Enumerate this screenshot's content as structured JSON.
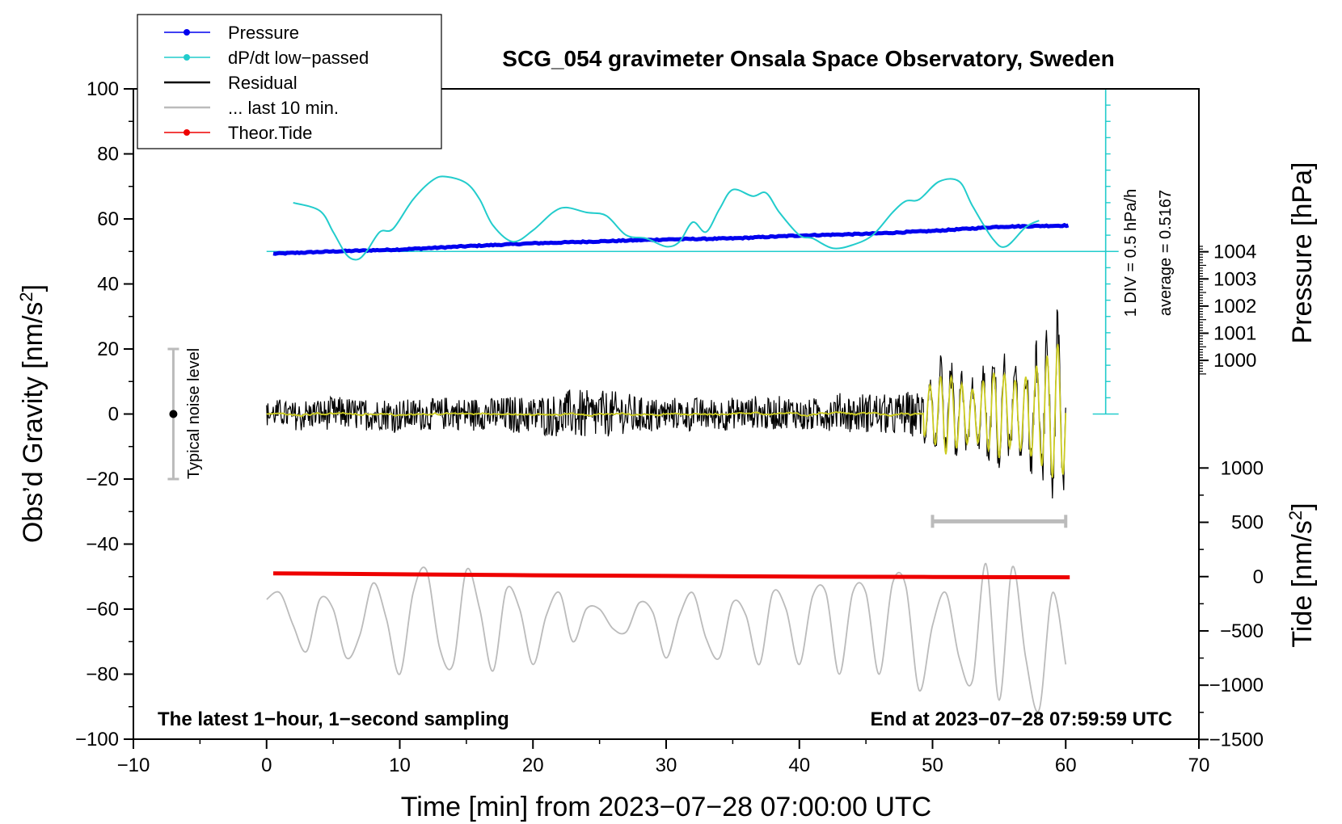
{
  "chart_data": {
    "type": "line",
    "title": "SCG_054 gravimeter Onsala Space Observatory, Sweden",
    "xlabel": "Time [min] from 2023−07−28 07:00:00 UTC",
    "ylabel": "Obs’d Gravity [nm/s²]",
    "ylabel_main": "Obs’d Gravity [nm/s",
    "ylabel_sup": "2",
    "ylabel_close": "]",
    "xlim": [
      -10,
      70
    ],
    "ylim": [
      -100,
      100
    ],
    "x_ticks": [
      -10,
      0,
      10,
      20,
      30,
      40,
      50,
      60,
      70
    ],
    "x_tick_labels": [
      "−10",
      "0",
      "10",
      "20",
      "30",
      "40",
      "50",
      "60",
      "70"
    ],
    "y_ticks": [
      -100,
      -80,
      -60,
      -40,
      -20,
      0,
      20,
      40,
      60,
      80,
      100
    ],
    "y_tick_labels": [
      "−100",
      "−80",
      "−60",
      "−40",
      "−20",
      "0",
      "20",
      "40",
      "60",
      "80",
      "100"
    ],
    "pressure_axis": {
      "label": "Pressure [hPa]",
      "ticks": [
        1000,
        1001,
        1002,
        1003,
        1004
      ],
      "tick_labels": [
        "1000",
        "1001",
        "1002",
        "1003",
        "1004"
      ],
      "gravity_at_1000": 16.5,
      "gravity_per_hpa": 8.35
    },
    "tide_axis": {
      "label_main": "Tide [nm/s",
      "label_sup": "2",
      "label_close": "]",
      "ticks": [
        -1500,
        -1000,
        -500,
        0,
        500,
        1000
      ],
      "tick_labels": [
        "−1500",
        "−1000",
        "−500",
        "0",
        "500",
        "1000"
      ],
      "gravity_at_0": -50.0,
      "gravity_per_unit": 0.0334
    },
    "dpdt_scale": {
      "label": "1 DIV = 0.5 hPa/h",
      "average_label": "average = 0.5167",
      "x": 63,
      "y_range": [
        0,
        100
      ],
      "baseline_y": 50,
      "div_step": 5
    },
    "noise_bar": {
      "label": "Typical noise level",
      "x": -7,
      "center": 0,
      "half_range": 20
    },
    "last10_bar": {
      "x_range": [
        50,
        60
      ],
      "y": -33
    },
    "series": [
      {
        "name": "Pressure",
        "color": "#0000ee",
        "x": [
          0.5,
          5,
          10,
          15,
          20,
          25,
          30,
          35,
          40,
          45,
          50,
          55,
          60.3
        ],
        "values": [
          49.3,
          50.0,
          50.6,
          51.6,
          52.5,
          53.1,
          53.7,
          54.0,
          54.9,
          55.4,
          56.3,
          57.6,
          58.0
        ]
      },
      {
        "name": "dP/dt low−passed",
        "color": "#22cccc",
        "x": [
          2,
          4,
          5,
          6,
          6.8,
          7.5,
          8.5,
          9.5,
          11,
          12.5,
          13.5,
          15,
          16,
          17,
          18.5,
          20,
          21.5,
          22.5,
          24,
          25.5,
          27,
          28.5,
          30,
          31,
          32,
          33,
          34,
          35,
          36.5,
          37.5,
          38.5,
          40,
          41,
          42.5,
          44,
          45.5,
          47,
          48,
          49,
          50.5,
          52,
          53,
          54.5,
          55.5,
          57,
          58
        ],
        "values": [
          65,
          62.5,
          56,
          49,
          47.5,
          50,
          56,
          57,
          66,
          72,
          73,
          71,
          66,
          58,
          53,
          56.5,
          62,
          63.5,
          62,
          61,
          55,
          54,
          51.5,
          53,
          59,
          56,
          63,
          69,
          67,
          68,
          62,
          55,
          54,
          51,
          52,
          55,
          62,
          65.5,
          66,
          71.5,
          71.5,
          64,
          54,
          51.5,
          57.5,
          59.5
        ]
      },
      {
        "name": "Residual",
        "color": "#000000",
        "x": [
          0,
          5,
          10,
          15,
          20,
          22,
          24,
          26,
          28,
          30,
          35,
          40,
          45,
          49,
          50,
          51,
          52,
          53,
          54,
          55,
          56,
          57,
          58,
          59,
          59.5,
          60
        ],
        "values": [
          0,
          0,
          0,
          0,
          0,
          0,
          0,
          0,
          0,
          0,
          0,
          0,
          0,
          0,
          0,
          0,
          0,
          0,
          0,
          0,
          0,
          0,
          0,
          0,
          0,
          0
        ],
        "envelope": [
          4,
          5,
          5,
          5,
          6,
          7,
          8,
          7,
          6,
          5,
          5,
          5,
          6,
          7,
          12,
          16,
          13,
          10,
          14,
          18,
          13,
          15,
          20,
          26,
          28,
          22
        ]
      },
      {
        "name": "... last 10 min.",
        "color": "#bbbbbb",
        "x": [
          0,
          1,
          2,
          3,
          4,
          5,
          6,
          7,
          8,
          9,
          10,
          11,
          12,
          13,
          14,
          15,
          16,
          17,
          18,
          19,
          20,
          21,
          22,
          23,
          24,
          25,
          26,
          27,
          28,
          29,
          30,
          31,
          32,
          33,
          34,
          35,
          36,
          37,
          38,
          39,
          40,
          41,
          42,
          43,
          44,
          45,
          46,
          47,
          48,
          49,
          50,
          51,
          52,
          53,
          54,
          55,
          56,
          57,
          58,
          59,
          60
        ],
        "values": [
          -57,
          -55,
          -65,
          -73,
          -57,
          -60,
          -75,
          -68,
          -52,
          -63,
          -80,
          -55,
          -48,
          -72,
          -77,
          -48,
          -60,
          -79,
          -54,
          -60,
          -77,
          -62,
          -55,
          -70,
          -60,
          -60,
          -66,
          -67,
          -58,
          -61,
          -75,
          -62,
          -55,
          -69,
          -75,
          -58,
          -62,
          -77,
          -55,
          -60,
          -77,
          -56,
          -55,
          -80,
          -55,
          -55,
          -80,
          -52,
          -53,
          -85,
          -65,
          -55,
          -75,
          -82,
          -46,
          -88,
          -47,
          -75,
          -91,
          -55,
          -77
        ]
      },
      {
        "name": "Theor.Tide",
        "color": "#ee0000",
        "x": [
          0.5,
          10,
          20,
          30,
          40,
          50,
          60.3
        ],
        "values": [
          -49.0,
          -49.3,
          -49.6,
          -49.8,
          -50.0,
          -50.1,
          -50.2
        ]
      }
    ],
    "legend": {
      "position": "top-left",
      "entries": [
        {
          "label": "Pressure",
          "color": "#0000ee",
          "marker": true
        },
        {
          "label": "dP/dt low−passed",
          "color": "#22cccc",
          "marker": true
        },
        {
          "label": "Residual",
          "color": "#000000",
          "marker": false
        },
        {
          "label": "... last 10 min.",
          "color": "#bbbbbb",
          "marker": false
        },
        {
          "label": "Theor.Tide",
          "color": "#ee0000",
          "marker": true
        }
      ]
    },
    "annotations": {
      "bottom_left": "The latest 1−hour, 1−second sampling",
      "bottom_right": "End at 2023−07−28 07:59:59 UTC"
    }
  }
}
